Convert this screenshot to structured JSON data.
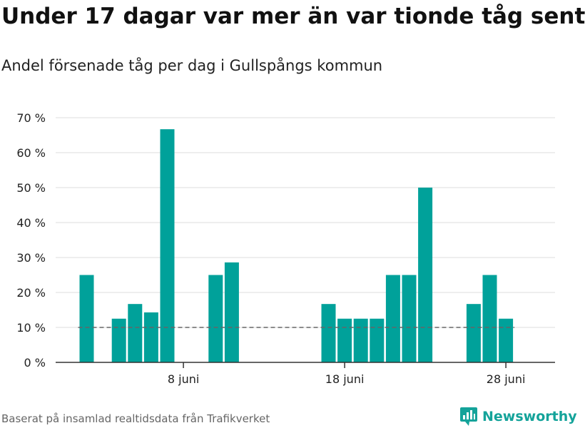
{
  "header": {
    "title": "Under 17 dagar var mer än var tionde tåg sent",
    "subtitle": "Andel försenade tåg per dag i Gullspångs kommun"
  },
  "footer": {
    "source": "Baserat på insamlad realtidsdata från Trafikverket",
    "brand": "Newsworthy"
  },
  "colors": {
    "bar": "#00a19a",
    "grid": "#dddddd",
    "axis": "#333333",
    "threshold": "#666666",
    "brand": "#14a39a"
  },
  "chart_data": {
    "type": "bar",
    "title": "Under 17 dagar var mer än var tionde tåg sent",
    "subtitle": "Andel försenade tåg per dag i Gullspångs kommun",
    "xlabel": "",
    "ylabel": "",
    "x_unit": "day of June",
    "ylim": [
      0,
      70
    ],
    "xlim": [
      0.5,
      30.5
    ],
    "yticks": [
      {
        "value": 0,
        "label": "0 %"
      },
      {
        "value": 10,
        "label": "10 %"
      },
      {
        "value": 20,
        "label": "20 %"
      },
      {
        "value": 30,
        "label": "30 %"
      },
      {
        "value": 40,
        "label": "40 %"
      },
      {
        "value": 50,
        "label": "50 %"
      },
      {
        "value": 60,
        "label": "60 %"
      },
      {
        "value": 70,
        "label": "70 %"
      }
    ],
    "xticks": [
      {
        "value": 8,
        "label": "8 juni"
      },
      {
        "value": 18,
        "label": "18 juni"
      },
      {
        "value": 28,
        "label": "28 juni"
      }
    ],
    "threshold": 10,
    "grid": true,
    "series": [
      {
        "name": "Andel försenade tåg",
        "points": [
          {
            "day": 2,
            "value": 25
          },
          {
            "day": 4,
            "value": 12.5
          },
          {
            "day": 5,
            "value": 16.7
          },
          {
            "day": 6,
            "value": 14.3
          },
          {
            "day": 7,
            "value": 66.7
          },
          {
            "day": 10,
            "value": 25
          },
          {
            "day": 11,
            "value": 28.6
          },
          {
            "day": 17,
            "value": 16.7
          },
          {
            "day": 18,
            "value": 12.5
          },
          {
            "day": 19,
            "value": 12.5
          },
          {
            "day": 20,
            "value": 12.5
          },
          {
            "day": 21,
            "value": 25
          },
          {
            "day": 22,
            "value": 25
          },
          {
            "day": 23,
            "value": 50
          },
          {
            "day": 26,
            "value": 16.7
          },
          {
            "day": 27,
            "value": 25
          },
          {
            "day": 28,
            "value": 12.5
          }
        ]
      }
    ]
  }
}
